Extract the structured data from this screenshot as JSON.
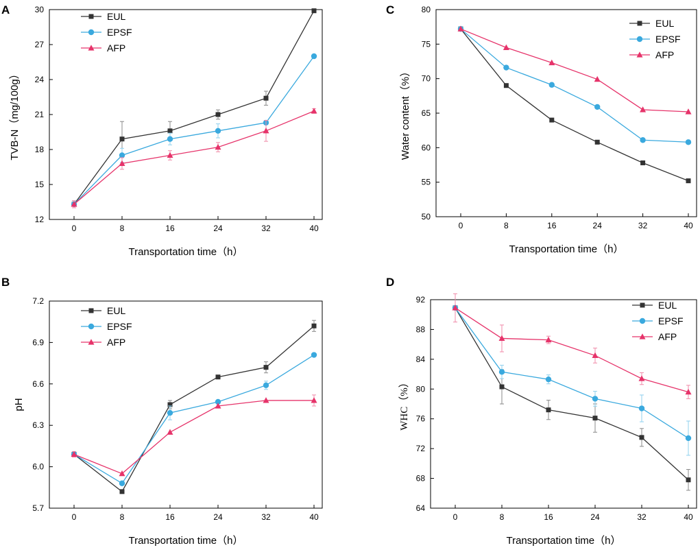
{
  "chart_data": [
    {
      "panel": "A",
      "type": "line",
      "xlabel": "Transportation time（h）",
      "ylabel": "TVB-N（mg/100g）",
      "x": [
        0,
        8,
        16,
        24,
        32,
        40
      ],
      "xticks": [
        "0",
        "8",
        "16",
        "24",
        "32",
        "40"
      ],
      "ylim": [
        12,
        30
      ],
      "yticks": [
        "12",
        "15",
        "18",
        "21",
        "24",
        "27",
        "30"
      ],
      "legend": "top-left",
      "series": [
        {
          "name": "EUL",
          "color": "#333333",
          "marker": "square",
          "values": [
            13.3,
            18.9,
            19.6,
            21.0,
            22.4,
            29.9
          ],
          "errors": [
            0.3,
            1.5,
            0.8,
            0.4,
            0.6,
            0.0
          ]
        },
        {
          "name": "EPSF",
          "color": "#3aa9de",
          "marker": "circle",
          "values": [
            13.3,
            17.5,
            18.9,
            19.6,
            20.3,
            26.0
          ],
          "errors": [
            0.3,
            0.6,
            0.5,
            0.6,
            0.0,
            0.0
          ]
        },
        {
          "name": "AFP",
          "color": "#e6336a",
          "marker": "triangle",
          "values": [
            13.3,
            16.8,
            17.5,
            18.2,
            19.6,
            21.3
          ],
          "errors": [
            0.3,
            0.5,
            0.4,
            0.4,
            0.9,
            0.2
          ]
        }
      ]
    },
    {
      "panel": "C",
      "type": "line",
      "xlabel": "Transportation time（h）",
      "ylabel": "Water content（%）",
      "x": [
        0,
        8,
        16,
        24,
        32,
        40
      ],
      "xticks": [
        "0",
        "8",
        "16",
        "24",
        "32",
        "40"
      ],
      "ylim": [
        50,
        80
      ],
      "yticks": [
        "50",
        "55",
        "60",
        "65",
        "70",
        "75",
        "80"
      ],
      "legend": "top-right",
      "series": [
        {
          "name": "EUL",
          "color": "#333333",
          "marker": "square",
          "values": [
            77.2,
            69.0,
            64.0,
            60.8,
            57.8,
            55.2
          ],
          "errors": [
            0,
            0,
            0,
            0,
            0,
            0
          ]
        },
        {
          "name": "EPSF",
          "color": "#3aa9de",
          "marker": "circle",
          "values": [
            77.2,
            71.6,
            69.1,
            65.9,
            61.1,
            60.8
          ],
          "errors": [
            0,
            0,
            0,
            0,
            0,
            0
          ]
        },
        {
          "name": "AFP",
          "color": "#e6336a",
          "marker": "triangle",
          "values": [
            77.2,
            74.5,
            72.3,
            69.9,
            65.5,
            65.2
          ],
          "errors": [
            0,
            0,
            0,
            0,
            0,
            0
          ]
        }
      ]
    },
    {
      "panel": "B",
      "type": "line",
      "xlabel": "Transportation time（h）",
      "ylabel": "pH",
      "x": [
        0,
        8,
        16,
        24,
        32,
        40
      ],
      "xticks": [
        "0",
        "8",
        "16",
        "24",
        "32",
        "40"
      ],
      "ylim": [
        5.7,
        7.2
      ],
      "yticks": [
        "5.7",
        "6.0",
        "6.3",
        "6.6",
        "6.9",
        "7.2"
      ],
      "legend": "top-left",
      "series": [
        {
          "name": "EUL",
          "color": "#333333",
          "marker": "square",
          "values": [
            6.09,
            5.82,
            6.45,
            6.65,
            6.72,
            7.02
          ],
          "errors": [
            0.02,
            0.01,
            0.03,
            0.0,
            0.04,
            0.04
          ]
        },
        {
          "name": "EPSF",
          "color": "#3aa9de",
          "marker": "circle",
          "values": [
            6.09,
            5.88,
            6.39,
            6.47,
            6.59,
            6.81
          ],
          "errors": [
            0.02,
            0.01,
            0.05,
            0.0,
            0.03,
            0.0
          ]
        },
        {
          "name": "AFP",
          "color": "#e6336a",
          "marker": "triangle",
          "values": [
            6.09,
            5.95,
            6.25,
            6.44,
            6.48,
            6.48
          ],
          "errors": [
            0.02,
            0.0,
            0.0,
            0.0,
            0.0,
            0.04
          ]
        }
      ]
    },
    {
      "panel": "D",
      "type": "line",
      "xlabel": "Transportation time（h）",
      "ylabel": "WHC（%）",
      "x": [
        0,
        8,
        16,
        24,
        32,
        40
      ],
      "xticks": [
        "0",
        "8",
        "16",
        "24",
        "32",
        "40"
      ],
      "ylim": [
        64,
        92
      ],
      "yticks": [
        "64",
        "68",
        "72",
        "76",
        "80",
        "84",
        "88",
        "92"
      ],
      "legend": "top-right",
      "series": [
        {
          "name": "EUL",
          "color": "#333333",
          "marker": "square",
          "values": [
            90.9,
            80.3,
            77.2,
            76.1,
            73.5,
            67.8
          ],
          "errors": [
            0.0,
            2.3,
            1.3,
            1.9,
            1.2,
            1.4
          ]
        },
        {
          "name": "EPSF",
          "color": "#3aa9de",
          "marker": "circle",
          "values": [
            90.9,
            82.3,
            81.3,
            78.7,
            77.4,
            73.4
          ],
          "errors": [
            0.0,
            0.9,
            0.6,
            1.0,
            1.8,
            2.3
          ]
        },
        {
          "name": "AFP",
          "color": "#e6336a",
          "marker": "triangle",
          "values": [
            90.9,
            86.8,
            86.6,
            84.5,
            81.4,
            79.6
          ],
          "errors": [
            1.9,
            1.8,
            0.5,
            1.0,
            0.8,
            0.9
          ]
        }
      ]
    }
  ]
}
